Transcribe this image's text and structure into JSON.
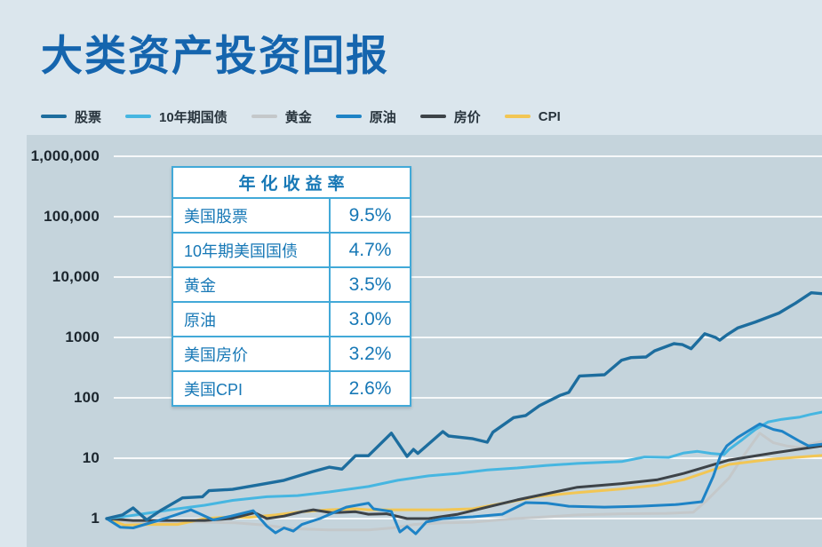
{
  "title": "大类资产投资回报",
  "panel": {
    "background": "#c5d4dc",
    "page_background": "#dbe6ed",
    "gridline_color": "#ffffff"
  },
  "returns_table": {
    "header": "年化收益率",
    "rows": [
      {
        "label": "美国股票",
        "value": "9.5%"
      },
      {
        "label": "10年期美国国债",
        "value": "4.7%"
      },
      {
        "label": "黄金",
        "value": "3.5%"
      },
      {
        "label": "原油",
        "value": "3.0%"
      },
      {
        "label": "美国房价",
        "value": "3.2%"
      },
      {
        "label": "美国CPI",
        "value": "2.6%"
      }
    ]
  },
  "chart_data": {
    "type": "line",
    "title": "大类资产投资回报",
    "legend_position": "top",
    "x_axis": {
      "tick_labels_visible": false,
      "note": "time axis, labels cropped out of view",
      "unit": "percent of plot width"
    },
    "y_axis": {
      "scale": "log",
      "range": [
        1,
        1000000
      ],
      "grid": true,
      "tick_values": [
        1,
        10,
        100,
        1000,
        10000,
        100000,
        1000000
      ],
      "tick_labels": [
        "1",
        "10",
        "100",
        "1000",
        "10,000",
        "100,000",
        "1,000,000"
      ]
    },
    "series": [
      {
        "key": "stocks",
        "name": "股票",
        "color": "#1d6d9e",
        "annualized_return": "9.5%",
        "points": [
          [
            0,
            1.0
          ],
          [
            2.2,
            1.15
          ],
          [
            3.7,
            1.5
          ],
          [
            5.6,
            0.95
          ],
          [
            7.5,
            1.35
          ],
          [
            10.6,
            2.2
          ],
          [
            13.4,
            2.3
          ],
          [
            14.3,
            2.9
          ],
          [
            17.6,
            3.05
          ],
          [
            21.1,
            3.6
          ],
          [
            24.8,
            4.3
          ],
          [
            28.8,
            6.0
          ],
          [
            31.1,
            7.1
          ],
          [
            32.9,
            6.6
          ],
          [
            34.8,
            11
          ],
          [
            36.6,
            11
          ],
          [
            39.8,
            26
          ],
          [
            42.0,
            10.7
          ],
          [
            42.9,
            14
          ],
          [
            43.5,
            12
          ],
          [
            47.0,
            27.6
          ],
          [
            47.8,
            23.3
          ],
          [
            51.2,
            21
          ],
          [
            53.2,
            18.4
          ],
          [
            54.0,
            27
          ],
          [
            56.9,
            47
          ],
          [
            58.6,
            51
          ],
          [
            60.5,
            74
          ],
          [
            63.4,
            110
          ],
          [
            64.6,
            123
          ],
          [
            66.1,
            230
          ],
          [
            69.6,
            241
          ],
          [
            72.0,
            420
          ],
          [
            73.3,
            464
          ],
          [
            75.4,
            474
          ],
          [
            76.6,
            600
          ],
          [
            79.3,
            790
          ],
          [
            80.5,
            760
          ],
          [
            81.7,
            650
          ],
          [
            83.6,
            1150
          ],
          [
            85.1,
            1000
          ],
          [
            85.7,
            900
          ],
          [
            86.7,
            1100
          ],
          [
            88.2,
            1430
          ],
          [
            90.7,
            1800
          ],
          [
            94.0,
            2540
          ],
          [
            96.3,
            3690
          ],
          [
            98.5,
            5500
          ],
          [
            100,
            5300
          ]
        ]
      },
      {
        "key": "treasury10y",
        "name": "10年期国债",
        "color": "#46b6e1",
        "annualized_return": "4.7%",
        "points": [
          [
            0,
            1.0
          ],
          [
            2.5,
            1.08
          ],
          [
            6.2,
            1.25
          ],
          [
            9.9,
            1.45
          ],
          [
            13.7,
            1.66
          ],
          [
            17.6,
            2.0
          ],
          [
            22.4,
            2.3
          ],
          [
            26.7,
            2.4
          ],
          [
            31.1,
            2.76
          ],
          [
            36.6,
            3.4
          ],
          [
            40.7,
            4.3
          ],
          [
            45.0,
            5.1
          ],
          [
            49.1,
            5.6
          ],
          [
            53.2,
            6.4
          ],
          [
            57.4,
            6.9
          ],
          [
            61.5,
            7.6
          ],
          [
            65.8,
            8.2
          ],
          [
            72.0,
            8.8
          ],
          [
            75.2,
            10.5
          ],
          [
            78.6,
            10.3
          ],
          [
            80.7,
            12.2
          ],
          [
            82.6,
            13.0
          ],
          [
            84.5,
            12.0
          ],
          [
            86.3,
            11.5
          ],
          [
            87.0,
            14.0
          ],
          [
            88.8,
            20
          ],
          [
            90.7,
            30
          ],
          [
            92.5,
            40
          ],
          [
            94.4,
            44
          ],
          [
            96.9,
            48
          ],
          [
            98.4,
            53
          ],
          [
            100,
            58
          ]
        ]
      },
      {
        "key": "gold",
        "name": "黄金",
        "color": "#c4c8ca",
        "annualized_return": "3.5%",
        "points": [
          [
            0,
            1.0
          ],
          [
            2.5,
            0.9
          ],
          [
            5.0,
            0.87
          ],
          [
            12.0,
            0.88
          ],
          [
            18.0,
            0.85
          ],
          [
            22.0,
            0.78
          ],
          [
            26.0,
            0.68
          ],
          [
            31.0,
            0.65
          ],
          [
            36.6,
            0.65
          ],
          [
            40.0,
            0.7
          ],
          [
            43.0,
            0.8
          ],
          [
            47.0,
            0.85
          ],
          [
            51.0,
            0.87
          ],
          [
            57.1,
            1.0
          ],
          [
            61.5,
            1.07
          ],
          [
            65.8,
            1.15
          ],
          [
            72.0,
            1.2
          ],
          [
            78.3,
            1.22
          ],
          [
            82.0,
            1.27
          ],
          [
            83.9,
            2.0
          ],
          [
            87.0,
            4.7
          ],
          [
            88.8,
            10
          ],
          [
            91.3,
            26
          ],
          [
            93.2,
            18
          ],
          [
            95.0,
            16
          ],
          [
            96.9,
            15
          ],
          [
            98.4,
            17
          ],
          [
            100,
            19
          ]
        ]
      },
      {
        "key": "oil",
        "name": "原油",
        "color": "#1e83c6",
        "annualized_return": "3.0%",
        "points": [
          [
            0,
            1.0
          ],
          [
            1.9,
            0.72
          ],
          [
            3.7,
            0.7
          ],
          [
            8.1,
            1.0
          ],
          [
            11.8,
            1.4
          ],
          [
            14.9,
            0.95
          ],
          [
            17.4,
            1.1
          ],
          [
            20.5,
            1.35
          ],
          [
            22.4,
            0.75
          ],
          [
            23.6,
            0.58
          ],
          [
            24.8,
            0.7
          ],
          [
            26.1,
            0.62
          ],
          [
            27.3,
            0.8
          ],
          [
            29.8,
            1.0
          ],
          [
            33.5,
            1.55
          ],
          [
            36.6,
            1.8
          ],
          [
            37.3,
            1.45
          ],
          [
            39.8,
            1.31
          ],
          [
            41.0,
            0.6
          ],
          [
            42.0,
            0.74
          ],
          [
            43.2,
            0.56
          ],
          [
            44.7,
            0.88
          ],
          [
            47.0,
            1.0
          ],
          [
            51.2,
            1.07
          ],
          [
            55.3,
            1.18
          ],
          [
            58.6,
            1.84
          ],
          [
            61.5,
            1.8
          ],
          [
            64.6,
            1.6
          ],
          [
            69.6,
            1.55
          ],
          [
            74.5,
            1.6
          ],
          [
            79.5,
            1.7
          ],
          [
            83.2,
            1.9
          ],
          [
            84.8,
            5.0
          ],
          [
            85.8,
            11
          ],
          [
            86.7,
            16
          ],
          [
            88.2,
            22
          ],
          [
            91.3,
            37
          ],
          [
            93.2,
            30
          ],
          [
            94.4,
            28
          ],
          [
            96.9,
            19
          ],
          [
            98.1,
            16
          ],
          [
            100,
            17
          ]
        ]
      },
      {
        "key": "house",
        "name": "房价",
        "color": "#3d4348",
        "annualized_return": "3.2%",
        "points": [
          [
            0,
            1.0
          ],
          [
            3.7,
            0.93
          ],
          [
            13.7,
            0.93
          ],
          [
            17.4,
            1.0
          ],
          [
            20.7,
            1.25
          ],
          [
            22.4,
            1.0
          ],
          [
            24.8,
            1.1
          ],
          [
            27.3,
            1.3
          ],
          [
            28.9,
            1.4
          ],
          [
            31.4,
            1.25
          ],
          [
            34.8,
            1.3
          ],
          [
            36.6,
            1.18
          ],
          [
            39.1,
            1.2
          ],
          [
            42.0,
            1.0
          ],
          [
            45.0,
            1.0
          ],
          [
            49.1,
            1.18
          ],
          [
            53.2,
            1.55
          ],
          [
            57.4,
            2.04
          ],
          [
            61.5,
            2.58
          ],
          [
            65.8,
            3.3
          ],
          [
            72.0,
            3.8
          ],
          [
            77.0,
            4.4
          ],
          [
            80.7,
            5.6
          ],
          [
            87.0,
            9.3
          ],
          [
            93.2,
            12.2
          ],
          [
            100,
            16
          ]
        ]
      },
      {
        "key": "cpi",
        "name": "CPI",
        "color": "#f2c654",
        "annualized_return": "2.6%",
        "points": [
          [
            0,
            1.0
          ],
          [
            2.5,
            0.78
          ],
          [
            6.2,
            0.8
          ],
          [
            9.9,
            0.8
          ],
          [
            13.7,
            1.0
          ],
          [
            16.1,
            1.05
          ],
          [
            19.9,
            1.05
          ],
          [
            23.6,
            1.15
          ],
          [
            27.3,
            1.3
          ],
          [
            31.1,
            1.4
          ],
          [
            34.8,
            1.45
          ],
          [
            36.6,
            1.4
          ],
          [
            42.9,
            1.4
          ],
          [
            47.0,
            1.4
          ],
          [
            51.2,
            1.45
          ],
          [
            55.9,
            1.84
          ],
          [
            60.2,
            2.33
          ],
          [
            61.5,
            2.4
          ],
          [
            65.8,
            2.7
          ],
          [
            72.0,
            3.1
          ],
          [
            77.0,
            3.6
          ],
          [
            80.7,
            4.4
          ],
          [
            87.0,
            7.9
          ],
          [
            93.2,
            9.7
          ],
          [
            100,
            11.1
          ]
        ]
      }
    ]
  }
}
